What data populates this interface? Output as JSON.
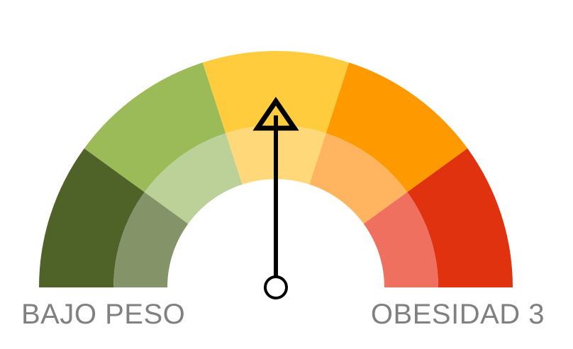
{
  "chart_data": {
    "type": "gauge",
    "min_label": "BAJO PESO",
    "max_label": "OBESIDAD 3",
    "segments": [
      {
        "outer_color": "#4f6228",
        "inner_color": "#849468"
      },
      {
        "outer_color": "#9bbb59",
        "inner_color": "#bbd197"
      },
      {
        "outer_color": "#ffcc3d",
        "inner_color": "#ffd87a"
      },
      {
        "outer_color": "#ff9900",
        "inner_color": "#ffb560"
      },
      {
        "outer_color": "#e0320f",
        "inner_color": "#f07060"
      }
    ],
    "needle_value": 0.5,
    "needle_color": "#000000"
  }
}
